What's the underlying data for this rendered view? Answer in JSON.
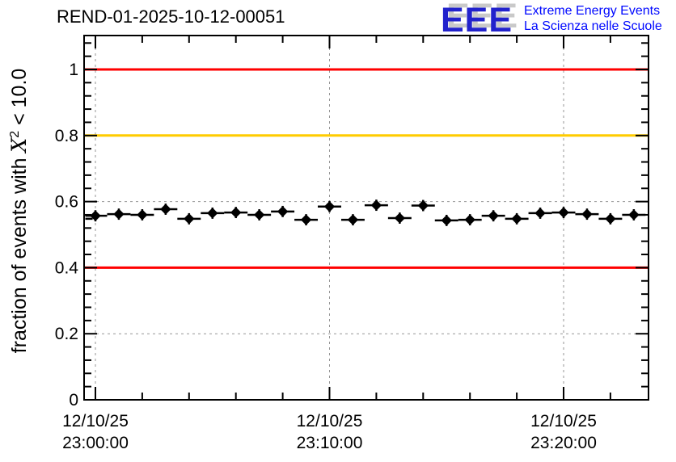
{
  "header": {
    "title": "REND-01-2025-10-12-00051"
  },
  "logo": {
    "acronym": "EEE",
    "line1": "Extreme Energy Events",
    "line2": "La Scienza nelle Scuole",
    "acronym_color": "#2222cc",
    "text_color": "#0008ff",
    "shadow_color": "#c9c9c9"
  },
  "chart_data": {
    "type": "scatter",
    "title": "REND-01-2025-10-12-00051",
    "xlabel": "",
    "ylabel_parts": {
      "pre": "fraction of events with ",
      "base": "X",
      "sup": "2",
      "post": " < 10.0"
    },
    "ylim": [
      0,
      1.103
    ],
    "xlim_minutes": [
      -0.48,
      23.63
    ],
    "grid": true,
    "grid_color": "#969696",
    "y_ticks": [
      {
        "value": 0,
        "label": "0"
      },
      {
        "value": 0.2,
        "label": "0.2"
      },
      {
        "value": 0.4,
        "label": "0.4"
      },
      {
        "value": 0.6,
        "label": "0.6"
      },
      {
        "value": 0.8,
        "label": "0.8"
      },
      {
        "value": 1,
        "label": "1"
      }
    ],
    "y_minor_step": 0.04,
    "x_ticks": [
      {
        "minutes": 0,
        "date": "12/10/25",
        "time": "23:00:00"
      },
      {
        "minutes": 10,
        "date": "12/10/25",
        "time": "23:10:00"
      },
      {
        "minutes": 20,
        "date": "12/10/25",
        "time": "23:20:00"
      }
    ],
    "x_minor_minutes": [
      2,
      4,
      6,
      8,
      12,
      14,
      16,
      18,
      22
    ],
    "reference_lines": [
      {
        "value": 1.0,
        "color": "#ff0000"
      },
      {
        "value": 0.8,
        "color": "#ffcc00"
      },
      {
        "value": 0.4,
        "color": "#ff0000"
      }
    ],
    "series": [
      {
        "name": "fraction-of-events",
        "marker": "diamond",
        "color": "#000000",
        "x_error_minutes": 0.5,
        "y_error": 0.017,
        "points": [
          {
            "minutes": -0.62,
            "value": 0.548
          },
          {
            "minutes": 0,
            "value": 0.557
          },
          {
            "minutes": 1,
            "value": 0.562
          },
          {
            "minutes": 2,
            "value": 0.56
          },
          {
            "minutes": 3,
            "value": 0.577
          },
          {
            "minutes": 4,
            "value": 0.548
          },
          {
            "minutes": 5,
            "value": 0.565
          },
          {
            "minutes": 6,
            "value": 0.567
          },
          {
            "minutes": 7,
            "value": 0.56
          },
          {
            "minutes": 8,
            "value": 0.57
          },
          {
            "minutes": 9,
            "value": 0.545
          },
          {
            "minutes": 10,
            "value": 0.585
          },
          {
            "minutes": 11,
            "value": 0.545
          },
          {
            "minutes": 12,
            "value": 0.589
          },
          {
            "minutes": 13,
            "value": 0.55
          },
          {
            "minutes": 14,
            "value": 0.588
          },
          {
            "minutes": 15,
            "value": 0.543
          },
          {
            "minutes": 16,
            "value": 0.545
          },
          {
            "minutes": 17,
            "value": 0.557
          },
          {
            "minutes": 18,
            "value": 0.548
          },
          {
            "minutes": 19,
            "value": 0.565
          },
          {
            "minutes": 20,
            "value": 0.567
          },
          {
            "minutes": 21,
            "value": 0.562
          },
          {
            "minutes": 22,
            "value": 0.548
          },
          {
            "minutes": 23,
            "value": 0.56
          }
        ]
      }
    ]
  }
}
